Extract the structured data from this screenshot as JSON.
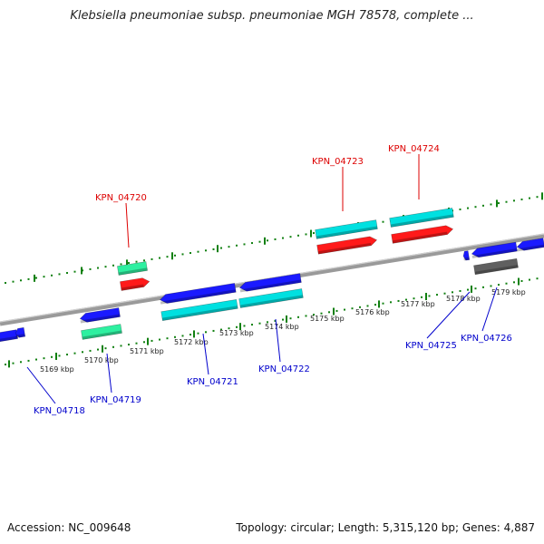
{
  "title": "Klebsiella pneumoniae subsp. pneumoniae MGH 78578, complete ...",
  "footer": {
    "accession": "Accession: NC_009648",
    "info": "Topology: circular; Length: 5,315,120 bp; Genes: 4,887"
  },
  "colors": {
    "fwd_gene": "#00e0e0",
    "fwd_cds": "#ff1a1a",
    "rev_gene": "#1a1aff",
    "rev_cds": "#00e0e0",
    "green_gene": "#2ef0a0",
    "grey_gene": "#606060",
    "tick": "#108010",
    "highlight_label": "#dd0000",
    "normal_label": "#0000cc"
  },
  "axis": {
    "ticks": [
      "5169 kbp",
      "5170 kbp",
      "5171 kbp",
      "5172 kbp",
      "5173 kbp",
      "5174 kbp",
      "5175 kbp",
      "5176 kbp",
      "5177 kbp",
      "5178 kbp",
      "5179 kbp"
    ]
  },
  "genes": [
    {
      "label": "KPN_04718",
      "highlight": false
    },
    {
      "label": "KPN_04719",
      "highlight": false
    },
    {
      "label": "KPN_04720",
      "highlight": true
    },
    {
      "label": "KPN_04721",
      "highlight": false
    },
    {
      "label": "KPN_04722",
      "highlight": false
    },
    {
      "label": "KPN_04723",
      "highlight": true
    },
    {
      "label": "KPN_04724",
      "highlight": true
    },
    {
      "label": "KPN_04725",
      "highlight": false
    },
    {
      "label": "KPN_04726",
      "highlight": false
    }
  ]
}
